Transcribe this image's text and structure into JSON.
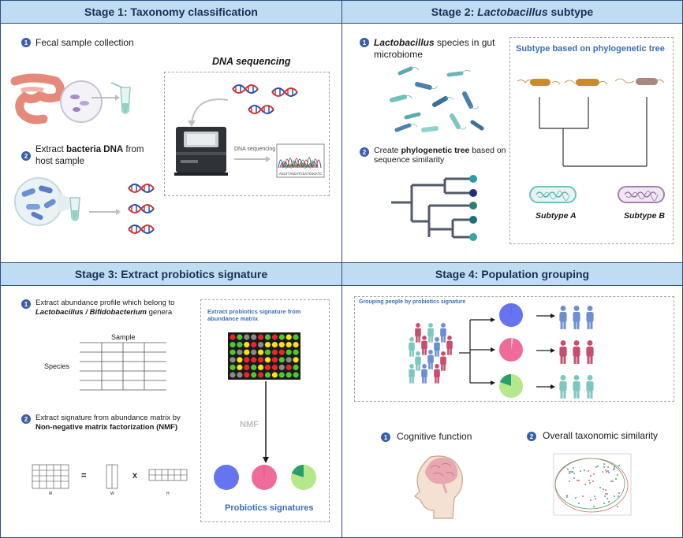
{
  "stage1": {
    "title": "Stage 1: Taxonomy classification",
    "step1_num": "1",
    "step1": "Fecal sample collection",
    "step2_num": "2",
    "step2_pre": "Extract ",
    "step2_bold": "bacteria DNA",
    "step2_post": " from host sample",
    "dna_title": "DNA sequencing",
    "dna_arrow": "DNA sequencing"
  },
  "stage2": {
    "title_pre": "Stage 2: ",
    "title_italic": "Lactobacillus",
    "title_post": " subtype",
    "step1_num": "1",
    "step1_italic": "Lactobacillus",
    "step1_post": " species in gut microbiome",
    "step2_num": "2",
    "step2_pre": "Create ",
    "step2_bold": "phylogenetic tree",
    "step2_post": " based on sequence similarity",
    "box_title": "Subtype based on phylogenetic tree",
    "subtype_a": "Subtype A",
    "subtype_b": "Subtype B"
  },
  "stage3": {
    "title": "Stage 3: Extract probiotics signature",
    "step1_num": "1",
    "step1_text": "Extract abundance profile which belong to",
    "step1_italic": "Lactobacillus / Bifidobacterium",
    "step1_post": " genera",
    "sample_label": "Sample",
    "species_label": "Species",
    "step2_num": "2",
    "step2_text": "Extract signature from abundance matrix by",
    "step2_bold": "Non-negative matrix factorization (NMF)",
    "eq_equals": "=",
    "eq_times": "X",
    "mat_m": "M",
    "mat_w": "W",
    "mat_h": "H",
    "box_title": "Extract probiotics signature from abundance matrix",
    "nmf_label": "NMF",
    "signatures_label": "Probiotics signatures"
  },
  "stage4": {
    "title": "Stage 4: Population grouping",
    "box_title": "Grouping people by probiotics signature",
    "item1_num": "1",
    "item1": "Cognitive function",
    "item2_num": "2",
    "item2": "Overall taxonomic similarity"
  },
  "colors": {
    "panel_border": "#2c4f7c",
    "header_fill": "#bfdcf2",
    "accent_blue": "#3b6fb6",
    "sig_blue": "#6674f0",
    "sig_pink": "#f06a9a",
    "sig_green": "#b5e88a",
    "dna_red": "#d93232",
    "dna_blue": "#2a4da8"
  }
}
